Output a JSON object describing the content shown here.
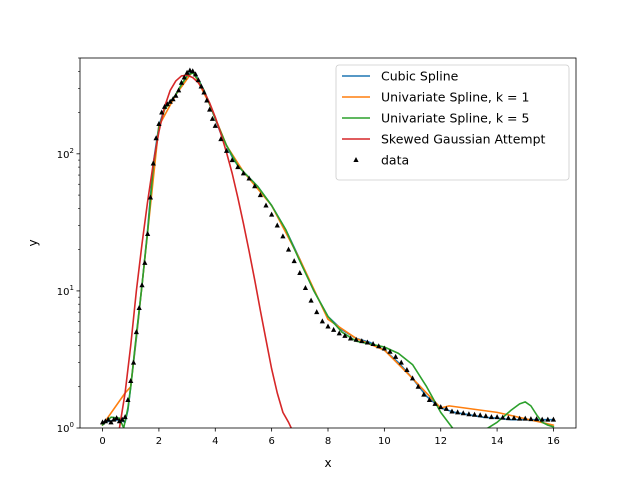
{
  "chart_data": {
    "type": "line",
    "xlabel": "x",
    "ylabel": "y",
    "xlim": [
      -0.8,
      16.8
    ],
    "ylim": [
      1,
      500
    ],
    "yscale": "log",
    "grid": false,
    "legend_position": "top-right",
    "x_ticks": [
      0,
      2,
      4,
      6,
      8,
      10,
      12,
      14,
      16
    ],
    "y_ticks": [
      {
        "value": 1,
        "base": "10",
        "exp": "0"
      },
      {
        "value": 10,
        "base": "10",
        "exp": "1"
      },
      {
        "value": 100,
        "base": "10",
        "exp": "2"
      }
    ],
    "series": [
      {
        "name": "Cubic Spline",
        "color": "#1f77b4",
        "x": [
          0,
          0.6,
          0.8,
          0.9,
          1.0,
          1.2,
          1.4,
          1.6,
          1.8,
          2.0,
          2.2,
          2.4,
          2.6,
          2.8,
          3.0,
          3.2,
          3.4,
          3.6,
          3.8,
          4.0,
          4.2,
          4.4,
          4.6,
          4.8,
          5.0,
          5.5,
          6.0,
          6.5,
          7.0,
          7.5,
          8.0,
          8.5,
          9.0,
          9.5,
          10.0,
          10.5,
          11.0,
          11.5,
          12.0,
          12.5,
          13.0,
          13.5,
          14.0,
          14.5,
          15.0,
          15.5,
          16.0
        ],
        "y": [
          1.1,
          1.15,
          1.1,
          1.35,
          2.0,
          4.5,
          11,
          28,
          85,
          160,
          215,
          240,
          270,
          320,
          370,
          400,
          350,
          290,
          230,
          180,
          140,
          115,
          95,
          82,
          74,
          58,
          42,
          28,
          17,
          10,
          6.5,
          5.2,
          4.5,
          4.2,
          3.7,
          3.0,
          2.3,
          1.7,
          1.4,
          1.3,
          1.25,
          1.2,
          1.18,
          1.15,
          1.15,
          1.15,
          1.15
        ]
      },
      {
        "name": "Univariate Spline, k = 1",
        "color": "#ff7f0e",
        "x": [
          0,
          0.8,
          1.0,
          1.4,
          2.0,
          2.6,
          3.2,
          3.8,
          4.4,
          5.0,
          6.0,
          7.0,
          8.0,
          9.0,
          10.0,
          11.0,
          12.0,
          12.3,
          14.0,
          16.0
        ],
        "y": [
          1.05,
          1.8,
          2.0,
          11,
          160,
          270,
          400,
          230,
          115,
          74,
          42,
          17,
          6.2,
          4.5,
          3.7,
          2.3,
          1.4,
          1.45,
          1.3,
          1.05
        ]
      },
      {
        "name": "Univariate Spline, k = 5",
        "color": "#2ca02c",
        "x": [
          0,
          0.3,
          0.6,
          0.75,
          0.9,
          1.0,
          1.2,
          1.4,
          1.6,
          1.8,
          2.0,
          2.2,
          2.4,
          2.6,
          2.8,
          3.0,
          3.2,
          3.4,
          3.6,
          3.8,
          4.0,
          4.4,
          4.8,
          5.0,
          5.5,
          6.0,
          6.5,
          7.0,
          7.5,
          8.0,
          8.5,
          9.0,
          9.5,
          10.0,
          10.5,
          11.0,
          11.5,
          12.0,
          12.5,
          13.0,
          13.5,
          14.0,
          14.5,
          14.8,
          15.0,
          15.2,
          15.4,
          15.6,
          15.8,
          16.0
        ],
        "y": [
          1.05,
          1.2,
          1.18,
          1.0,
          1.4,
          2.0,
          4.8,
          11,
          27,
          80,
          155,
          210,
          240,
          270,
          320,
          370,
          390,
          345,
          290,
          230,
          180,
          115,
          82,
          74,
          58,
          42,
          28,
          16.5,
          10,
          6.5,
          5.0,
          4.3,
          4.1,
          3.9,
          3.5,
          2.9,
          2.0,
          1.3,
          0.95,
          0.85,
          0.95,
          1.1,
          1.35,
          1.5,
          1.55,
          1.45,
          1.25,
          1.1,
          1.05,
          1.02
        ]
      },
      {
        "name": "Skewed Gaussian Attempt",
        "color": "#d62728",
        "x": [
          0.6,
          0.8,
          1.0,
          1.2,
          1.4,
          1.6,
          1.8,
          2.0,
          2.2,
          2.4,
          2.6,
          2.8,
          3.0,
          3.2,
          3.4,
          3.6,
          3.8,
          4.0,
          4.2,
          4.4,
          4.6,
          4.8,
          5.0,
          5.2,
          5.4,
          5.6,
          5.8,
          6.0,
          6.2,
          6.4,
          6.6,
          6.8
        ],
        "y": [
          1.0,
          1.8,
          4.0,
          10,
          22,
          45,
          85,
          145,
          220,
          290,
          340,
          370,
          375,
          360,
          330,
          285,
          235,
          185,
          140,
          102,
          72,
          48,
          31,
          19.5,
          12,
          7.2,
          4.4,
          2.7,
          1.8,
          1.3,
          1.1,
          0.9
        ]
      },
      {
        "name": "data",
        "type": "scatter",
        "marker": "triangle",
        "color": "#000000",
        "x": [
          0.0,
          0.1,
          0.2,
          0.3,
          0.4,
          0.5,
          0.6,
          0.7,
          0.8,
          0.9,
          1.0,
          1.1,
          1.2,
          1.3,
          1.4,
          1.5,
          1.6,
          1.7,
          1.8,
          1.9,
          2.0,
          2.1,
          2.2,
          2.3,
          2.4,
          2.5,
          2.6,
          2.7,
          2.8,
          2.9,
          3.0,
          3.1,
          3.2,
          3.3,
          3.4,
          3.5,
          3.6,
          3.7,
          3.8,
          3.9,
          4.0,
          4.2,
          4.4,
          4.6,
          4.8,
          5.0,
          5.2,
          5.4,
          5.6,
          5.8,
          6.0,
          6.2,
          6.4,
          6.6,
          6.8,
          7.0,
          7.2,
          7.4,
          7.6,
          7.8,
          8.0,
          8.2,
          8.4,
          8.6,
          8.8,
          9.0,
          9.2,
          9.4,
          9.6,
          9.8,
          10.0,
          10.2,
          10.4,
          10.6,
          10.8,
          11.0,
          11.2,
          11.4,
          11.6,
          11.8,
          12.0,
          12.2,
          12.4,
          12.6,
          12.8,
          13.0,
          13.2,
          13.4,
          13.6,
          13.8,
          14.0,
          14.2,
          14.4,
          14.6,
          14.8,
          15.0,
          15.2,
          15.4,
          15.6,
          15.8,
          16.0
        ],
        "y": [
          1.1,
          1.12,
          1.15,
          1.1,
          1.15,
          1.18,
          1.12,
          1.15,
          1.2,
          1.6,
          2.2,
          3.0,
          5.0,
          7.5,
          11,
          16,
          26,
          48,
          85,
          130,
          165,
          200,
          220,
          230,
          240,
          250,
          265,
          290,
          330,
          360,
          390,
          405,
          400,
          380,
          345,
          310,
          280,
          245,
          210,
          180,
          160,
          128,
          105,
          90,
          80,
          72,
          66,
          58,
          50,
          42,
          36,
          30,
          25,
          20,
          16.5,
          13.5,
          10.5,
          8.5,
          7.0,
          6.0,
          5.5,
          5.2,
          4.9,
          4.7,
          4.5,
          4.4,
          4.3,
          4.2,
          4.1,
          3.95,
          3.8,
          3.6,
          3.3,
          3.0,
          2.65,
          2.3,
          2.0,
          1.75,
          1.6,
          1.5,
          1.42,
          1.38,
          1.32,
          1.3,
          1.28,
          1.26,
          1.25,
          1.24,
          1.22,
          1.2,
          1.2,
          1.19,
          1.18,
          1.18,
          1.17,
          1.17,
          1.16,
          1.16,
          1.15,
          1.15,
          1.15
        ]
      }
    ]
  }
}
